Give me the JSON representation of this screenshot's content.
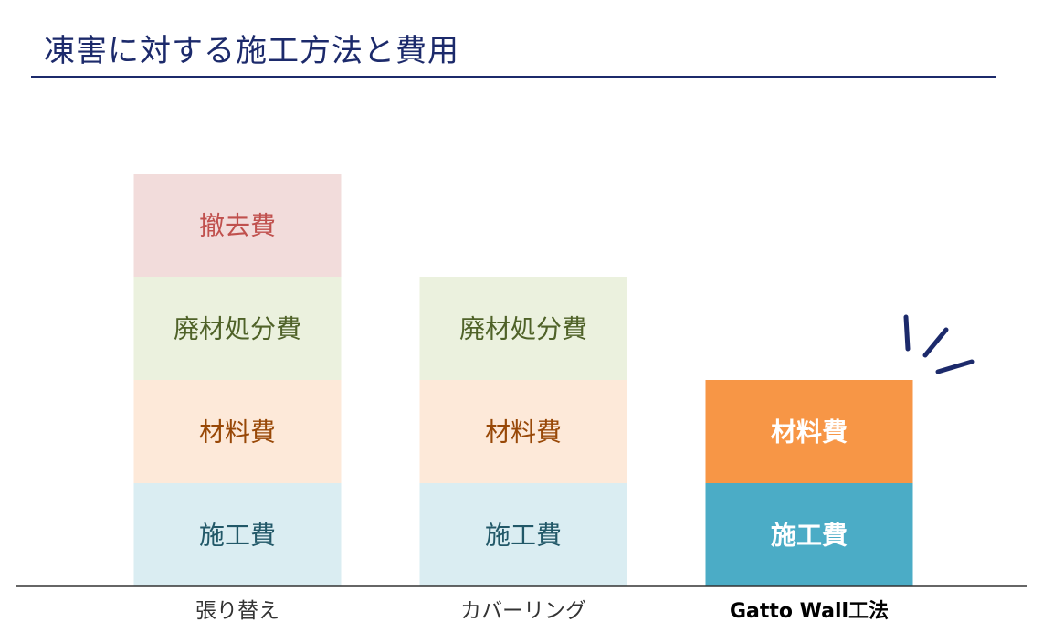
{
  "header": {
    "title": "凍害に対する施工方法と費用"
  },
  "colors": {
    "title_rule": "#1c2a6b",
    "axis": "#333333",
    "accent_lines": "#1c2a6b"
  },
  "chart_data": {
    "type": "bar",
    "stacked": true,
    "title": "凍害に対する施工方法と費用",
    "xlabel": "",
    "ylabel": "",
    "y_axis_shown": false,
    "grid": false,
    "categories": [
      "張り替え",
      "カバーリング",
      "Gatto Wall工法"
    ],
    "highlight_category": "Gatto Wall工法",
    "segments": [
      {
        "label": "施工費",
        "values": [
          1,
          1,
          1
        ],
        "fill": [
          "#daedf2",
          "#daedf2",
          "#4bacc6"
        ],
        "text_color": [
          "#215868",
          "#215868",
          "#ffffff"
        ]
      },
      {
        "label": "材料費",
        "values": [
          1,
          1,
          1
        ],
        "fill": [
          "#fde9d9",
          "#fde9d9",
          "#f79646"
        ],
        "text_color": [
          "#984807",
          "#984807",
          "#ffffff"
        ]
      },
      {
        "label": "廃材処分費",
        "values": [
          1,
          1,
          0
        ],
        "fill": [
          "#ebf1de",
          "#ebf1de",
          "#ebf1de"
        ],
        "text_color": [
          "#4f6228",
          "#4f6228",
          "#4f6228"
        ]
      },
      {
        "label": "撤去費",
        "values": [
          1,
          0,
          0
        ],
        "fill": [
          "#f2dcdb",
          "#f2dcdb",
          "#f2dcdb"
        ],
        "text_color": [
          "#c0504d",
          "#c0504d",
          "#c0504d"
        ]
      }
    ]
  }
}
